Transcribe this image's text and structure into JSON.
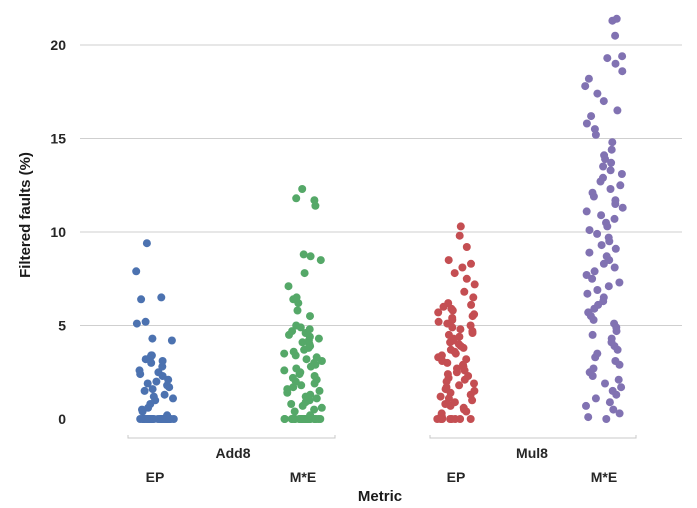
{
  "chart_data": {
    "type": "scatter",
    "ylabel": "Filtered faults (%)",
    "xlabel": "Metric",
    "ylim": [
      0,
      21.5
    ],
    "yticks": [
      0,
      5,
      10,
      15,
      20
    ],
    "grid": true,
    "groups": [
      "Add8",
      "Mul8"
    ],
    "categories": [
      "EP",
      "M*E",
      "EP",
      "M*E"
    ],
    "series": [
      {
        "group": "Add8",
        "metric": "EP",
        "color": "#4c72b0",
        "values": [
          0,
          0,
          0,
          0,
          0,
          0,
          0,
          0,
          0,
          0,
          0,
          0,
          0,
          0,
          0,
          0,
          0,
          0,
          0,
          0,
          0,
          0,
          0,
          0,
          0,
          0,
          0,
          0,
          0,
          0,
          0.2,
          0.4,
          0.5,
          0.6,
          0.8,
          1.0,
          1.1,
          1.2,
          1.3,
          1.5,
          1.6,
          1.7,
          1.8,
          1.9,
          2.0,
          2.1,
          2.3,
          2.4,
          2.5,
          2.6,
          2.8,
          3.0,
          3.1,
          3.2,
          3.3,
          3.4,
          3.4,
          4.2,
          4.3,
          5.1,
          5.2,
          6.4,
          6.5,
          7.9,
          9.4
        ]
      },
      {
        "group": "Add8",
        "metric": "M*E",
        "color": "#55a868",
        "values": [
          0,
          0,
          0,
          0,
          0,
          0,
          0,
          0,
          0,
          0,
          0,
          0,
          0,
          0,
          0,
          0,
          0,
          0,
          0,
          0,
          0,
          0,
          0,
          0,
          0,
          0,
          0.2,
          0.4,
          0.5,
          0.6,
          0.7,
          0.8,
          0.9,
          1.0,
          1.1,
          1.2,
          1.3,
          1.4,
          1.5,
          1.6,
          1.7,
          1.8,
          1.9,
          2.0,
          2.1,
          2.2,
          2.3,
          2.4,
          2.5,
          2.6,
          2.7,
          2.8,
          2.9,
          3.0,
          3.1,
          3.2,
          3.3,
          3.4,
          3.5,
          3.6,
          3.7,
          3.8,
          3.9,
          4.0,
          4.1,
          4.2,
          4.3,
          4.4,
          4.5,
          4.6,
          4.7,
          4.8,
          4.9,
          5.0,
          5.5,
          5.8,
          6.2,
          6.4,
          6.5,
          7.1,
          7.8,
          8.5,
          8.7,
          8.8,
          11.4,
          11.7,
          11.8,
          12.3
        ]
      },
      {
        "group": "Mul8",
        "metric": "EP",
        "color": "#c44e52",
        "values": [
          0,
          0,
          0,
          0,
          0,
          0,
          0,
          0,
          0.1,
          0.2,
          0.3,
          0.4,
          0.5,
          0.6,
          0.7,
          0.8,
          0.9,
          1.0,
          1.1,
          1.2,
          1.3,
          1.4,
          1.5,
          1.6,
          1.7,
          1.8,
          1.9,
          2.0,
          2.1,
          2.2,
          2.3,
          2.4,
          2.5,
          2.6,
          2.7,
          2.8,
          2.9,
          3.0,
          3.1,
          3.2,
          3.3,
          3.4,
          3.5,
          3.6,
          3.7,
          3.8,
          3.9,
          4.0,
          4.1,
          4.2,
          4.3,
          4.4,
          4.5,
          4.6,
          4.7,
          4.8,
          4.9,
          5.0,
          5.1,
          5.2,
          5.3,
          5.4,
          5.5,
          5.6,
          5.7,
          5.8,
          5.9,
          6.0,
          6.1,
          6.2,
          6.5,
          6.8,
          7.2,
          7.5,
          7.8,
          8.1,
          8.3,
          8.5,
          9.2,
          9.8,
          10.3
        ]
      },
      {
        "group": "Mul8",
        "metric": "M*E",
        "color": "#8172b2",
        "values": [
          0,
          0.1,
          0.3,
          0.5,
          0.7,
          0.9,
          1.1,
          1.3,
          1.5,
          1.7,
          1.9,
          2.1,
          2.3,
          2.5,
          2.7,
          2.9,
          3.1,
          3.3,
          3.5,
          3.7,
          3.9,
          4.1,
          4.3,
          4.5,
          4.7,
          4.9,
          5.1,
          5.3,
          5.5,
          5.7,
          5.9,
          6.1,
          6.3,
          6.5,
          6.7,
          6.9,
          7.1,
          7.3,
          7.5,
          7.7,
          7.9,
          8.1,
          8.3,
          8.5,
          8.7,
          8.9,
          9.1,
          9.3,
          9.5,
          9.7,
          9.9,
          10.1,
          10.3,
          10.5,
          10.7,
          10.9,
          11.1,
          11.3,
          11.5,
          11.7,
          11.9,
          12.1,
          12.3,
          12.5,
          12.7,
          12.9,
          13.1,
          13.3,
          13.5,
          13.7,
          13.9,
          14.1,
          14.4,
          14.8,
          15.2,
          15.5,
          15.8,
          16.2,
          16.5,
          17.0,
          17.4,
          17.8,
          18.2,
          18.6,
          19.0,
          19.3,
          19.4,
          20.5,
          21.3,
          21.4
        ]
      }
    ]
  }
}
